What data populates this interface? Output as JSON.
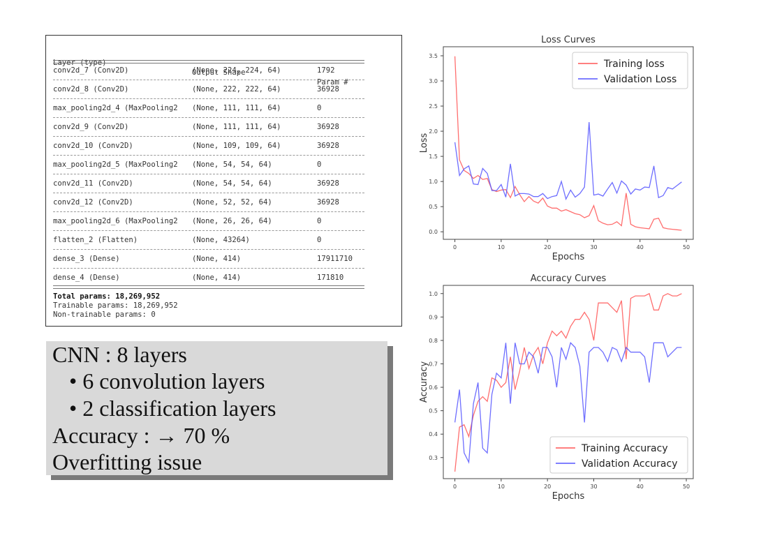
{
  "model_summary": {
    "headers": [
      "Layer (type)",
      "Output Shape",
      "Param #"
    ],
    "rows": [
      [
        "conv2d_7 (Conv2D)",
        "(None, 224, 224, 64)",
        "1792"
      ],
      [
        "conv2d_8 (Conv2D)",
        "(None, 222, 222, 64)",
        "36928"
      ],
      [
        "max_pooling2d_4 (MaxPooling2",
        "(None, 111, 111, 64)",
        "0"
      ],
      [
        "conv2d_9 (Conv2D)",
        "(None, 111, 111, 64)",
        "36928"
      ],
      [
        "conv2d_10 (Conv2D)",
        "(None, 109, 109, 64)",
        "36928"
      ],
      [
        "max_pooling2d_5 (MaxPooling2",
        "(None, 54, 54, 64)",
        "0"
      ],
      [
        "conv2d_11 (Conv2D)",
        "(None, 54, 54, 64)",
        "36928"
      ],
      [
        "conv2d_12 (Conv2D)",
        "(None, 52, 52, 64)",
        "36928"
      ],
      [
        "max_pooling2d_6 (MaxPooling2",
        "(None, 26, 26, 64)",
        "0"
      ],
      [
        "flatten_2 (Flatten)",
        "(None, 43264)",
        "0"
      ],
      [
        "dense_3 (Dense)",
        "(None, 414)",
        "17911710"
      ],
      [
        "dense_4 (Dense)",
        "(None, 414)",
        "171810"
      ]
    ],
    "total_params": "Total params: 18,269,952",
    "trainable_params": "Trainable params: 18,269,952",
    "non_trainable_params": "Non-trainable params: 0"
  },
  "notes": {
    "title": "CNN : 8 layers",
    "bullets": [
      "6 convolution layers",
      "2 classification layers"
    ],
    "accuracy": "Accuracy : → 70 %",
    "issue": "Overfitting issue"
  },
  "chart_data": [
    {
      "type": "line",
      "title": "Loss Curves",
      "xlabel": "Epochs",
      "ylabel": "Loss",
      "xlim": [
        -2.5,
        51.5
      ],
      "ylim": [
        -0.15,
        3.68
      ],
      "xticks": [
        0,
        10,
        20,
        30,
        40,
        50
      ],
      "yticks": [
        0.0,
        0.5,
        1.0,
        1.5,
        2.0,
        2.5,
        3.0,
        3.5
      ],
      "legend": "top-right",
      "grid": false,
      "x": [
        0,
        1,
        2,
        3,
        4,
        5,
        6,
        7,
        8,
        9,
        10,
        11,
        12,
        13,
        14,
        15,
        16,
        17,
        18,
        19,
        20,
        21,
        22,
        23,
        24,
        25,
        26,
        27,
        28,
        29,
        30,
        31,
        32,
        33,
        34,
        35,
        36,
        37,
        38,
        39,
        40,
        41,
        42,
        43,
        44,
        45,
        46,
        47,
        48,
        49
      ],
      "series": [
        {
          "name": "Training loss",
          "color": "#ff5555",
          "values": [
            3.49,
            1.43,
            1.22,
            1.16,
            1.06,
            1.12,
            1.04,
            1.06,
            0.84,
            0.8,
            0.83,
            0.84,
            0.68,
            0.9,
            0.74,
            0.6,
            0.7,
            0.61,
            0.57,
            0.67,
            0.51,
            0.47,
            0.47,
            0.41,
            0.44,
            0.4,
            0.36,
            0.34,
            0.28,
            0.32,
            0.52,
            0.22,
            0.17,
            0.14,
            0.15,
            0.2,
            0.12,
            0.77,
            0.15,
            0.1,
            0.08,
            0.07,
            0.06,
            0.25,
            0.27,
            0.08,
            0.06,
            0.05,
            0.04,
            0.03
          ]
        },
        {
          "name": "Validation Loss",
          "color": "#5555ff",
          "values": [
            1.78,
            1.12,
            1.25,
            1.31,
            0.95,
            0.94,
            1.26,
            1.16,
            0.82,
            0.82,
            0.94,
            0.69,
            1.35,
            0.71,
            0.76,
            0.76,
            0.75,
            0.7,
            0.7,
            0.76,
            0.66,
            0.7,
            0.72,
            1.0,
            0.65,
            0.83,
            0.69,
            0.76,
            0.89,
            2.18,
            0.73,
            0.75,
            0.71,
            0.85,
            0.98,
            0.77,
            1.01,
            0.93,
            0.75,
            0.85,
            0.83,
            0.89,
            0.88,
            1.31,
            0.68,
            0.72,
            0.88,
            0.85,
            0.92,
            0.99
          ]
        }
      ]
    },
    {
      "type": "line",
      "title": "Accuracy Curves",
      "xlabel": "Epochs",
      "ylabel": "Accuracy",
      "xlim": [
        -2.5,
        51.5
      ],
      "ylim": [
        0.21,
        1.035
      ],
      "xticks": [
        0,
        10,
        20,
        30,
        40,
        50
      ],
      "yticks": [
        0.3,
        0.4,
        0.5,
        0.6,
        0.7,
        0.8,
        0.9,
        1.0
      ],
      "legend": "bottom-right",
      "grid": false,
      "x": [
        0,
        1,
        2,
        3,
        4,
        5,
        6,
        7,
        8,
        9,
        10,
        11,
        12,
        13,
        14,
        15,
        16,
        17,
        18,
        19,
        20,
        21,
        22,
        23,
        24,
        25,
        26,
        27,
        28,
        29,
        30,
        31,
        32,
        33,
        34,
        35,
        36,
        37,
        38,
        39,
        40,
        41,
        42,
        43,
        44,
        45,
        46,
        47,
        48,
        49
      ],
      "series": [
        {
          "name": "Training Accuracy",
          "color": "#ff5555",
          "values": [
            0.24,
            0.43,
            0.44,
            0.39,
            0.48,
            0.54,
            0.56,
            0.54,
            0.64,
            0.63,
            0.6,
            0.62,
            0.73,
            0.59,
            0.67,
            0.77,
            0.68,
            0.74,
            0.77,
            0.7,
            0.79,
            0.84,
            0.82,
            0.84,
            0.81,
            0.86,
            0.89,
            0.89,
            0.92,
            0.89,
            0.8,
            0.96,
            0.96,
            0.96,
            0.94,
            0.92,
            0.97,
            0.72,
            0.98,
            0.99,
            0.99,
            0.99,
            1.0,
            0.93,
            0.93,
            0.99,
            1.0,
            0.99,
            0.99,
            1.0
          ]
        },
        {
          "name": "Validation Accuracy",
          "color": "#5555ff",
          "values": [
            0.45,
            0.59,
            0.32,
            0.28,
            0.53,
            0.62,
            0.34,
            0.32,
            0.57,
            0.66,
            0.64,
            0.79,
            0.53,
            0.79,
            0.7,
            0.7,
            0.75,
            0.73,
            0.66,
            0.77,
            0.77,
            0.73,
            0.6,
            0.77,
            0.72,
            0.79,
            0.77,
            0.69,
            0.45,
            0.75,
            0.77,
            0.77,
            0.75,
            0.71,
            0.77,
            0.76,
            0.71,
            0.77,
            0.75,
            0.75,
            0.75,
            0.73,
            0.62,
            0.79,
            0.79,
            0.79,
            0.73,
            0.75,
            0.77,
            0.77
          ]
        }
      ]
    }
  ]
}
